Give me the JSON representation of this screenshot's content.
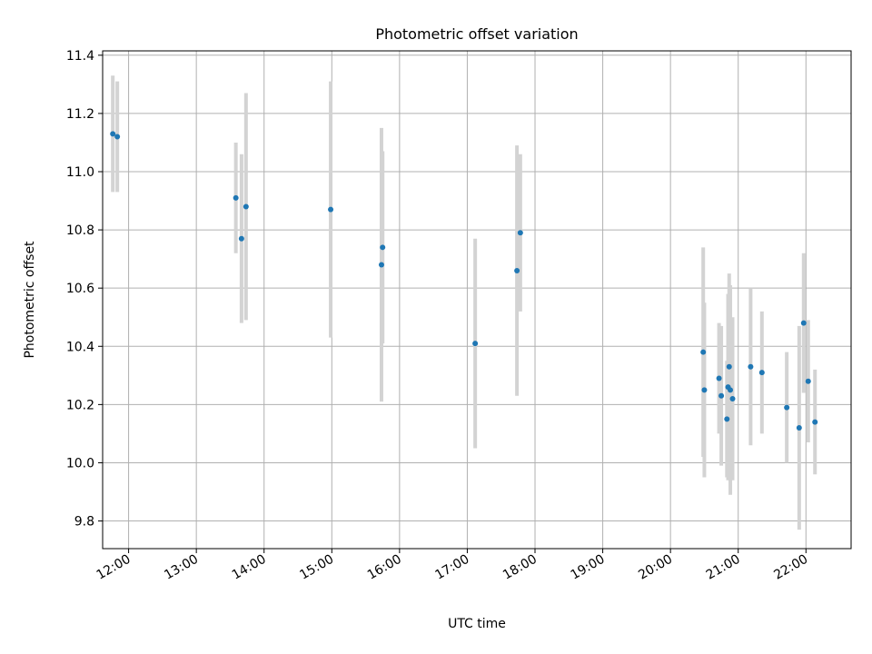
{
  "chart_data": {
    "type": "scatter",
    "title": "Photometric offset variation",
    "xlabel": "UTC time",
    "ylabel": "Photometric offset",
    "xlim": [
      "11:37",
      "22:40"
    ],
    "ylim": [
      9.705,
      11.415
    ],
    "grid": true,
    "x_ticks": [
      "12:00",
      "13:00",
      "14:00",
      "15:00",
      "16:00",
      "17:00",
      "18:00",
      "19:00",
      "20:00",
      "21:00",
      "22:00"
    ],
    "y_ticks": [
      9.8,
      10.0,
      10.2,
      10.4,
      10.6,
      10.8,
      11.0,
      11.2,
      11.4
    ],
    "y_tick_labels": [
      "9.8",
      "10.0",
      "10.2",
      "10.4",
      "10.6",
      "10.8",
      "11.0",
      "11.2",
      "11.4"
    ],
    "colors": {
      "point": "#1f77b4",
      "errorbar": "#d3d3d3",
      "grid": "#b0b0b0"
    },
    "points": [
      {
        "x": "11:46",
        "y": 11.13,
        "err": 0.2
      },
      {
        "x": "11:50",
        "y": 11.12,
        "err": 0.19
      },
      {
        "x": "13:35",
        "y": 10.91,
        "err": 0.19
      },
      {
        "x": "13:40",
        "y": 10.77,
        "err": 0.29
      },
      {
        "x": "13:44",
        "y": 10.88,
        "err": 0.39
      },
      {
        "x": "14:59",
        "y": 10.87,
        "err": 0.44
      },
      {
        "x": "15:44",
        "y": 10.68,
        "err": 0.47
      },
      {
        "x": "15:45",
        "y": 10.74,
        "err": 0.33
      },
      {
        "x": "17:07",
        "y": 10.41,
        "err": 0.36
      },
      {
        "x": "17:44",
        "y": 10.66,
        "err": 0.43
      },
      {
        "x": "17:47",
        "y": 10.79,
        "err": 0.27
      },
      {
        "x": "20:29",
        "y": 10.38,
        "err": 0.36
      },
      {
        "x": "20:30",
        "y": 10.25,
        "err": 0.3
      },
      {
        "x": "20:43",
        "y": 10.29,
        "err": 0.19
      },
      {
        "x": "20:45",
        "y": 10.23,
        "err": 0.24
      },
      {
        "x": "20:50",
        "y": 10.15,
        "err": 0.2
      },
      {
        "x": "20:51",
        "y": 10.26,
        "err": 0.32
      },
      {
        "x": "20:52",
        "y": 10.33,
        "err": 0.32
      },
      {
        "x": "20:53",
        "y": 10.25,
        "err": 0.36
      },
      {
        "x": "20:55",
        "y": 10.22,
        "err": 0.28
      },
      {
        "x": "21:11",
        "y": 10.33,
        "err": 0.27
      },
      {
        "x": "21:21",
        "y": 10.31,
        "err": 0.21
      },
      {
        "x": "21:43",
        "y": 10.19,
        "err": 0.19
      },
      {
        "x": "21:54",
        "y": 10.12,
        "err": 0.35
      },
      {
        "x": "21:58",
        "y": 10.48,
        "err": 0.24
      },
      {
        "x": "22:02",
        "y": 10.28,
        "err": 0.21
      },
      {
        "x": "22:08",
        "y": 10.14,
        "err": 0.18
      }
    ]
  }
}
